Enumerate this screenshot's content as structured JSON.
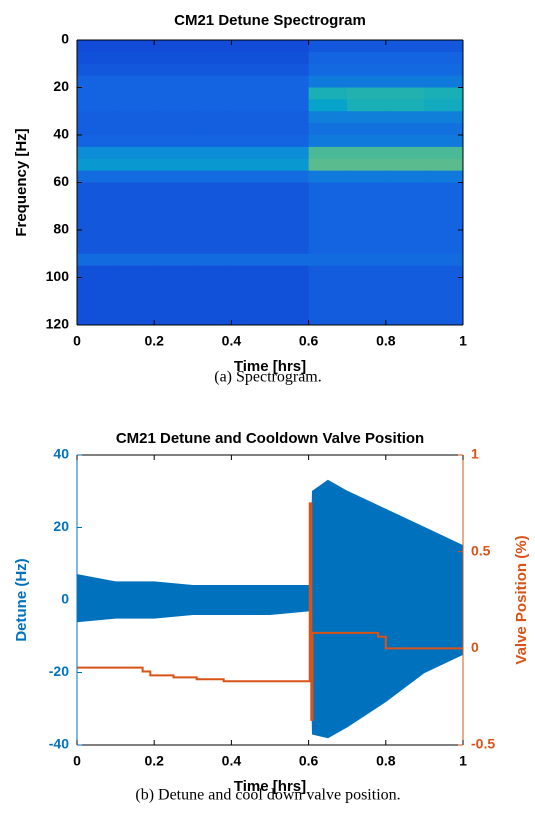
{
  "chart_data": [
    {
      "type": "heatmap",
      "title": "CM21 Detune Spectrogram",
      "xlabel": "Time [hrs]",
      "ylabel": "Frequency [Hz]",
      "caption": "(a) Spectrogram.",
      "colormap": "parula",
      "yaxis_reversed": true,
      "xbins": [
        0,
        0.1,
        0.2,
        0.3,
        0.4,
        0.5,
        0.6,
        0.7,
        0.8,
        0.9,
        1
      ],
      "ybins": [
        0,
        5,
        10,
        15,
        20,
        25,
        30,
        35,
        40,
        45,
        50,
        55,
        60,
        65,
        70,
        75,
        80,
        85,
        90,
        95,
        100,
        105,
        110,
        115,
        120
      ],
      "z": [
        [
          0.2,
          0.2,
          0.2,
          0.2,
          0.2,
          0.2,
          0.25,
          0.25,
          0.25,
          0.25
        ],
        [
          0.22,
          0.22,
          0.22,
          0.22,
          0.22,
          0.22,
          0.3,
          0.3,
          0.3,
          0.3
        ],
        [
          0.25,
          0.25,
          0.25,
          0.25,
          0.25,
          0.25,
          0.32,
          0.32,
          0.32,
          0.32
        ],
        [
          0.3,
          0.3,
          0.3,
          0.3,
          0.3,
          0.3,
          0.38,
          0.38,
          0.38,
          0.38
        ],
        [
          0.3,
          0.3,
          0.3,
          0.3,
          0.3,
          0.3,
          0.6,
          0.62,
          0.62,
          0.6
        ],
        [
          0.3,
          0.3,
          0.3,
          0.3,
          0.3,
          0.3,
          0.55,
          0.6,
          0.6,
          0.58
        ],
        [
          0.28,
          0.28,
          0.28,
          0.28,
          0.28,
          0.28,
          0.4,
          0.4,
          0.4,
          0.4
        ],
        [
          0.28,
          0.28,
          0.28,
          0.28,
          0.28,
          0.28,
          0.35,
          0.35,
          0.35,
          0.35
        ],
        [
          0.3,
          0.3,
          0.3,
          0.3,
          0.3,
          0.3,
          0.38,
          0.38,
          0.38,
          0.38
        ],
        [
          0.45,
          0.45,
          0.45,
          0.45,
          0.45,
          0.45,
          0.68,
          0.68,
          0.68,
          0.68
        ],
        [
          0.5,
          0.5,
          0.5,
          0.5,
          0.5,
          0.5,
          0.7,
          0.7,
          0.7,
          0.7
        ],
        [
          0.33,
          0.33,
          0.33,
          0.33,
          0.33,
          0.33,
          0.38,
          0.38,
          0.38,
          0.38
        ],
        [
          0.25,
          0.25,
          0.25,
          0.25,
          0.25,
          0.25,
          0.3,
          0.3,
          0.3,
          0.3
        ],
        [
          0.25,
          0.25,
          0.25,
          0.25,
          0.25,
          0.25,
          0.3,
          0.3,
          0.3,
          0.3
        ],
        [
          0.25,
          0.25,
          0.25,
          0.25,
          0.25,
          0.25,
          0.3,
          0.3,
          0.3,
          0.3
        ],
        [
          0.25,
          0.25,
          0.25,
          0.25,
          0.25,
          0.25,
          0.3,
          0.3,
          0.3,
          0.3
        ],
        [
          0.25,
          0.25,
          0.25,
          0.25,
          0.25,
          0.25,
          0.3,
          0.3,
          0.3,
          0.3
        ],
        [
          0.25,
          0.25,
          0.25,
          0.25,
          0.25,
          0.25,
          0.3,
          0.3,
          0.3,
          0.3
        ],
        [
          0.33,
          0.33,
          0.33,
          0.33,
          0.33,
          0.33,
          0.33,
          0.33,
          0.33,
          0.33
        ],
        [
          0.22,
          0.22,
          0.22,
          0.22,
          0.22,
          0.22,
          0.27,
          0.27,
          0.27,
          0.27
        ],
        [
          0.22,
          0.22,
          0.22,
          0.22,
          0.22,
          0.22,
          0.27,
          0.27,
          0.27,
          0.27
        ],
        [
          0.22,
          0.22,
          0.22,
          0.22,
          0.22,
          0.22,
          0.27,
          0.27,
          0.27,
          0.27
        ],
        [
          0.22,
          0.22,
          0.22,
          0.22,
          0.22,
          0.22,
          0.27,
          0.27,
          0.27,
          0.27
        ],
        [
          0.22,
          0.22,
          0.22,
          0.22,
          0.22,
          0.22,
          0.27,
          0.27,
          0.27,
          0.27
        ]
      ],
      "xlim": [
        0,
        1
      ],
      "xticks": [
        0,
        0.2,
        0.4,
        0.6,
        0.8,
        1
      ],
      "ylim": [
        0,
        120
      ],
      "yticks": [
        0,
        20,
        40,
        60,
        80,
        100,
        120
      ]
    },
    {
      "type": "line",
      "title": "CM21 Detune and Cooldown Valve Position",
      "xlabel": "Time [hrs]",
      "ylabel": "Detune (Hz)",
      "y2label": "Valve Position (%)",
      "caption": "(b) Detune and cool down valve position.",
      "xlim": [
        0,
        1
      ],
      "xticks": [
        0,
        0.2,
        0.4,
        0.6,
        0.8,
        1
      ],
      "ylim": [
        -40,
        40
      ],
      "yticks": [
        -40,
        -20,
        0,
        20,
        40
      ],
      "ycolor": "#0072bd",
      "y2lim": [
        -0.5,
        1
      ],
      "y2ticks": [
        -0.5,
        0,
        0.5,
        1
      ],
      "y2color": "#d95319",
      "series": [
        {
          "style": "band",
          "color": "#0072bd",
          "x": [
            0,
            0.1,
            0.2,
            0.3,
            0.4,
            0.5,
            0.6,
            0.605,
            0.61,
            0.65,
            0.7,
            0.8,
            0.9,
            1
          ],
          "upper": [
            7,
            5,
            5,
            4,
            4,
            4,
            4,
            4,
            30,
            33,
            30,
            25,
            20,
            15
          ],
          "lower": [
            -6,
            -5,
            -5,
            -4,
            -4,
            -4,
            -3,
            -3,
            -37,
            -38,
            -35,
            -28,
            -20,
            -15
          ]
        },
        {
          "style": "step-post",
          "axis": "y2",
          "color": "#d95319",
          "x": [
            0,
            0.17,
            0.19,
            0.25,
            0.31,
            0.38,
            0.6,
            0.603,
            0.607,
            0.61,
            0.72,
            0.78,
            0.8,
            1
          ],
          "values": [
            -0.1,
            -0.12,
            -0.14,
            -0.15,
            -0.16,
            -0.17,
            -0.17,
            0.75,
            -0.37,
            0.08,
            0.08,
            0.06,
            0,
            0
          ]
        }
      ]
    }
  ]
}
